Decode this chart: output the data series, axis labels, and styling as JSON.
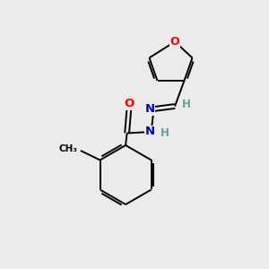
{
  "bg_color": "#ebebeb",
  "atom_colors": {
    "O": "#ff0000",
    "N": "#0000cc",
    "C": "#000000",
    "H": "#5ca0a0"
  },
  "bond_color": "#000000",
  "figsize": [
    3.0,
    3.0
  ],
  "dpi": 100
}
